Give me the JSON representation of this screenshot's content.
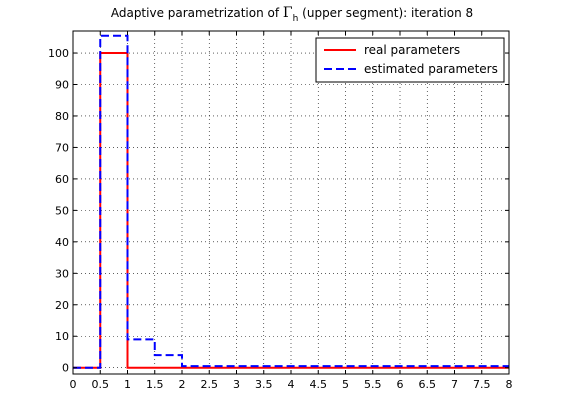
{
  "chart_data": {
    "type": "line",
    "title_main": "Adaptive parametrization of ",
    "title_gamma": "Γ",
    "title_sub": "h",
    "title_rest": " (upper segment): iteration 8",
    "xlabel": "",
    "ylabel": "",
    "xlim": [
      0,
      8
    ],
    "ylim": [
      -2,
      107
    ],
    "xticks": [
      0,
      0.5,
      1,
      1.5,
      2,
      2.5,
      3,
      3.5,
      4,
      4.5,
      5,
      5.5,
      6,
      6.5,
      7,
      7.5,
      8
    ],
    "xtick_labels": [
      "0",
      "0.5",
      "1",
      "1.5",
      "2",
      "2.5",
      "3",
      "3.5",
      "4",
      "4.5",
      "5",
      "5.5",
      "6",
      "6.5",
      "7",
      "7.5",
      "8"
    ],
    "yticks": [
      0,
      10,
      20,
      30,
      40,
      50,
      60,
      70,
      80,
      90,
      100
    ],
    "ytick_labels": [
      "0",
      "10",
      "20",
      "30",
      "40",
      "50",
      "60",
      "70",
      "80",
      "90",
      "100"
    ],
    "grid": true,
    "legend_position": "top-right",
    "series": [
      {
        "name": "real parameters",
        "color": "#ff0000",
        "dash": "solid",
        "x": [
          0,
          0.5,
          0.5,
          1,
          1,
          2,
          2,
          8
        ],
        "y": [
          0,
          0,
          100,
          100,
          0,
          0,
          0,
          0
        ]
      },
      {
        "name": "estimated parameters",
        "color": "#0000ff",
        "dash": "dashed",
        "x": [
          0,
          0.5,
          0.5,
          1,
          1,
          1.5,
          1.5,
          2,
          2,
          8
        ],
        "y": [
          0,
          0,
          105.5,
          105.5,
          9,
          9,
          4,
          4,
          0.5,
          0.5
        ]
      }
    ]
  }
}
